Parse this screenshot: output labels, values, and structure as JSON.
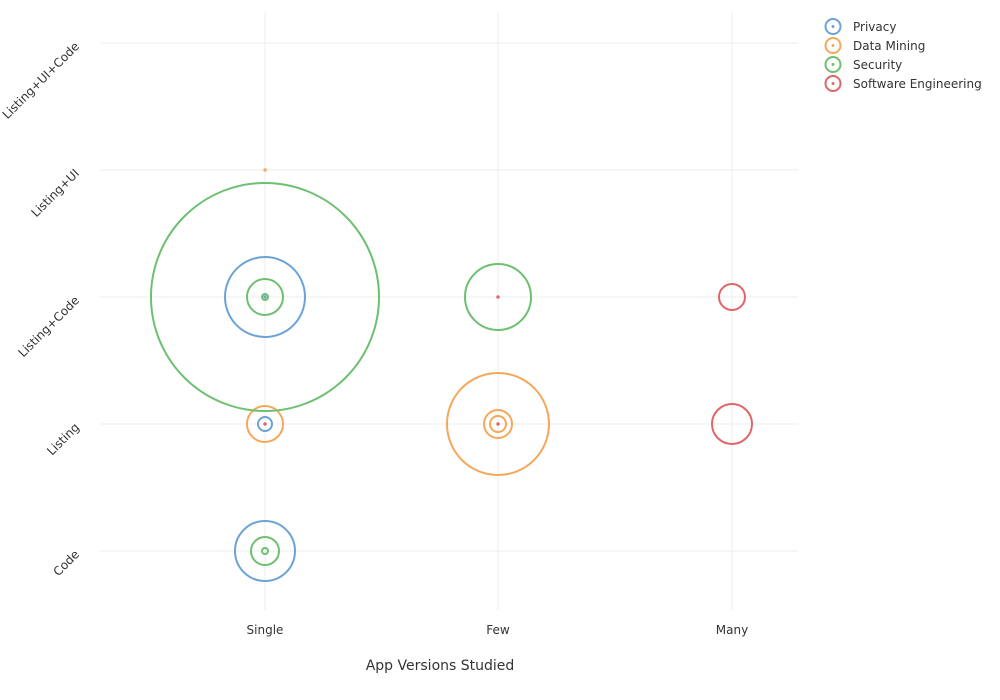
{
  "chart_data": {
    "type": "scatter",
    "title": "",
    "xlabel": "App Versions Studied",
    "ylabel": "",
    "x_categories": [
      "Single",
      "Few",
      "Many"
    ],
    "y_categories": [
      "Code",
      "Listing",
      "Listing+Code",
      "Listing+UI",
      "Listing+UI+Code"
    ],
    "grid": true,
    "legend_position": "top-right",
    "series": [
      {
        "name": "Privacy",
        "color": "#6ba3d6",
        "points": [
          {
            "x": "Single",
            "y": "Listing+Code",
            "size": 40
          },
          {
            "x": "Single",
            "y": "Listing+Code",
            "size": 1
          },
          {
            "x": "Single",
            "y": "Listing",
            "size": 7
          },
          {
            "x": "Single",
            "y": "Code",
            "size": 30
          }
        ]
      },
      {
        "name": "Data Mining",
        "color": "#f5a85a",
        "points": [
          {
            "x": "Single",
            "y": "Listing+UI",
            "size": 1
          },
          {
            "x": "Single",
            "y": "Listing",
            "size": 18
          },
          {
            "x": "Few",
            "y": "Listing",
            "size": 51
          },
          {
            "x": "Few",
            "y": "Listing",
            "size": 14
          },
          {
            "x": "Few",
            "y": "Listing",
            "size": 8
          }
        ]
      },
      {
        "name": "Security",
        "color": "#6cc070",
        "points": [
          {
            "x": "Single",
            "y": "Listing+Code",
            "size": 114
          },
          {
            "x": "Single",
            "y": "Listing+Code",
            "size": 18
          },
          {
            "x": "Single",
            "y": "Listing+Code",
            "size": 3
          },
          {
            "x": "Single",
            "y": "Code",
            "size": 14
          },
          {
            "x": "Single",
            "y": "Code",
            "size": 3
          },
          {
            "x": "Few",
            "y": "Listing+Code",
            "size": 33
          }
        ]
      },
      {
        "name": "Software Engineering",
        "color": "#e06666",
        "points": [
          {
            "x": "Single",
            "y": "Listing",
            "size": 1
          },
          {
            "x": "Few",
            "y": "Listing+Code",
            "size": 1
          },
          {
            "x": "Few",
            "y": "Listing",
            "size": 1
          },
          {
            "x": "Many",
            "y": "Listing+Code",
            "size": 13
          },
          {
            "x": "Many",
            "y": "Listing",
            "size": 20
          }
        ]
      }
    ]
  }
}
